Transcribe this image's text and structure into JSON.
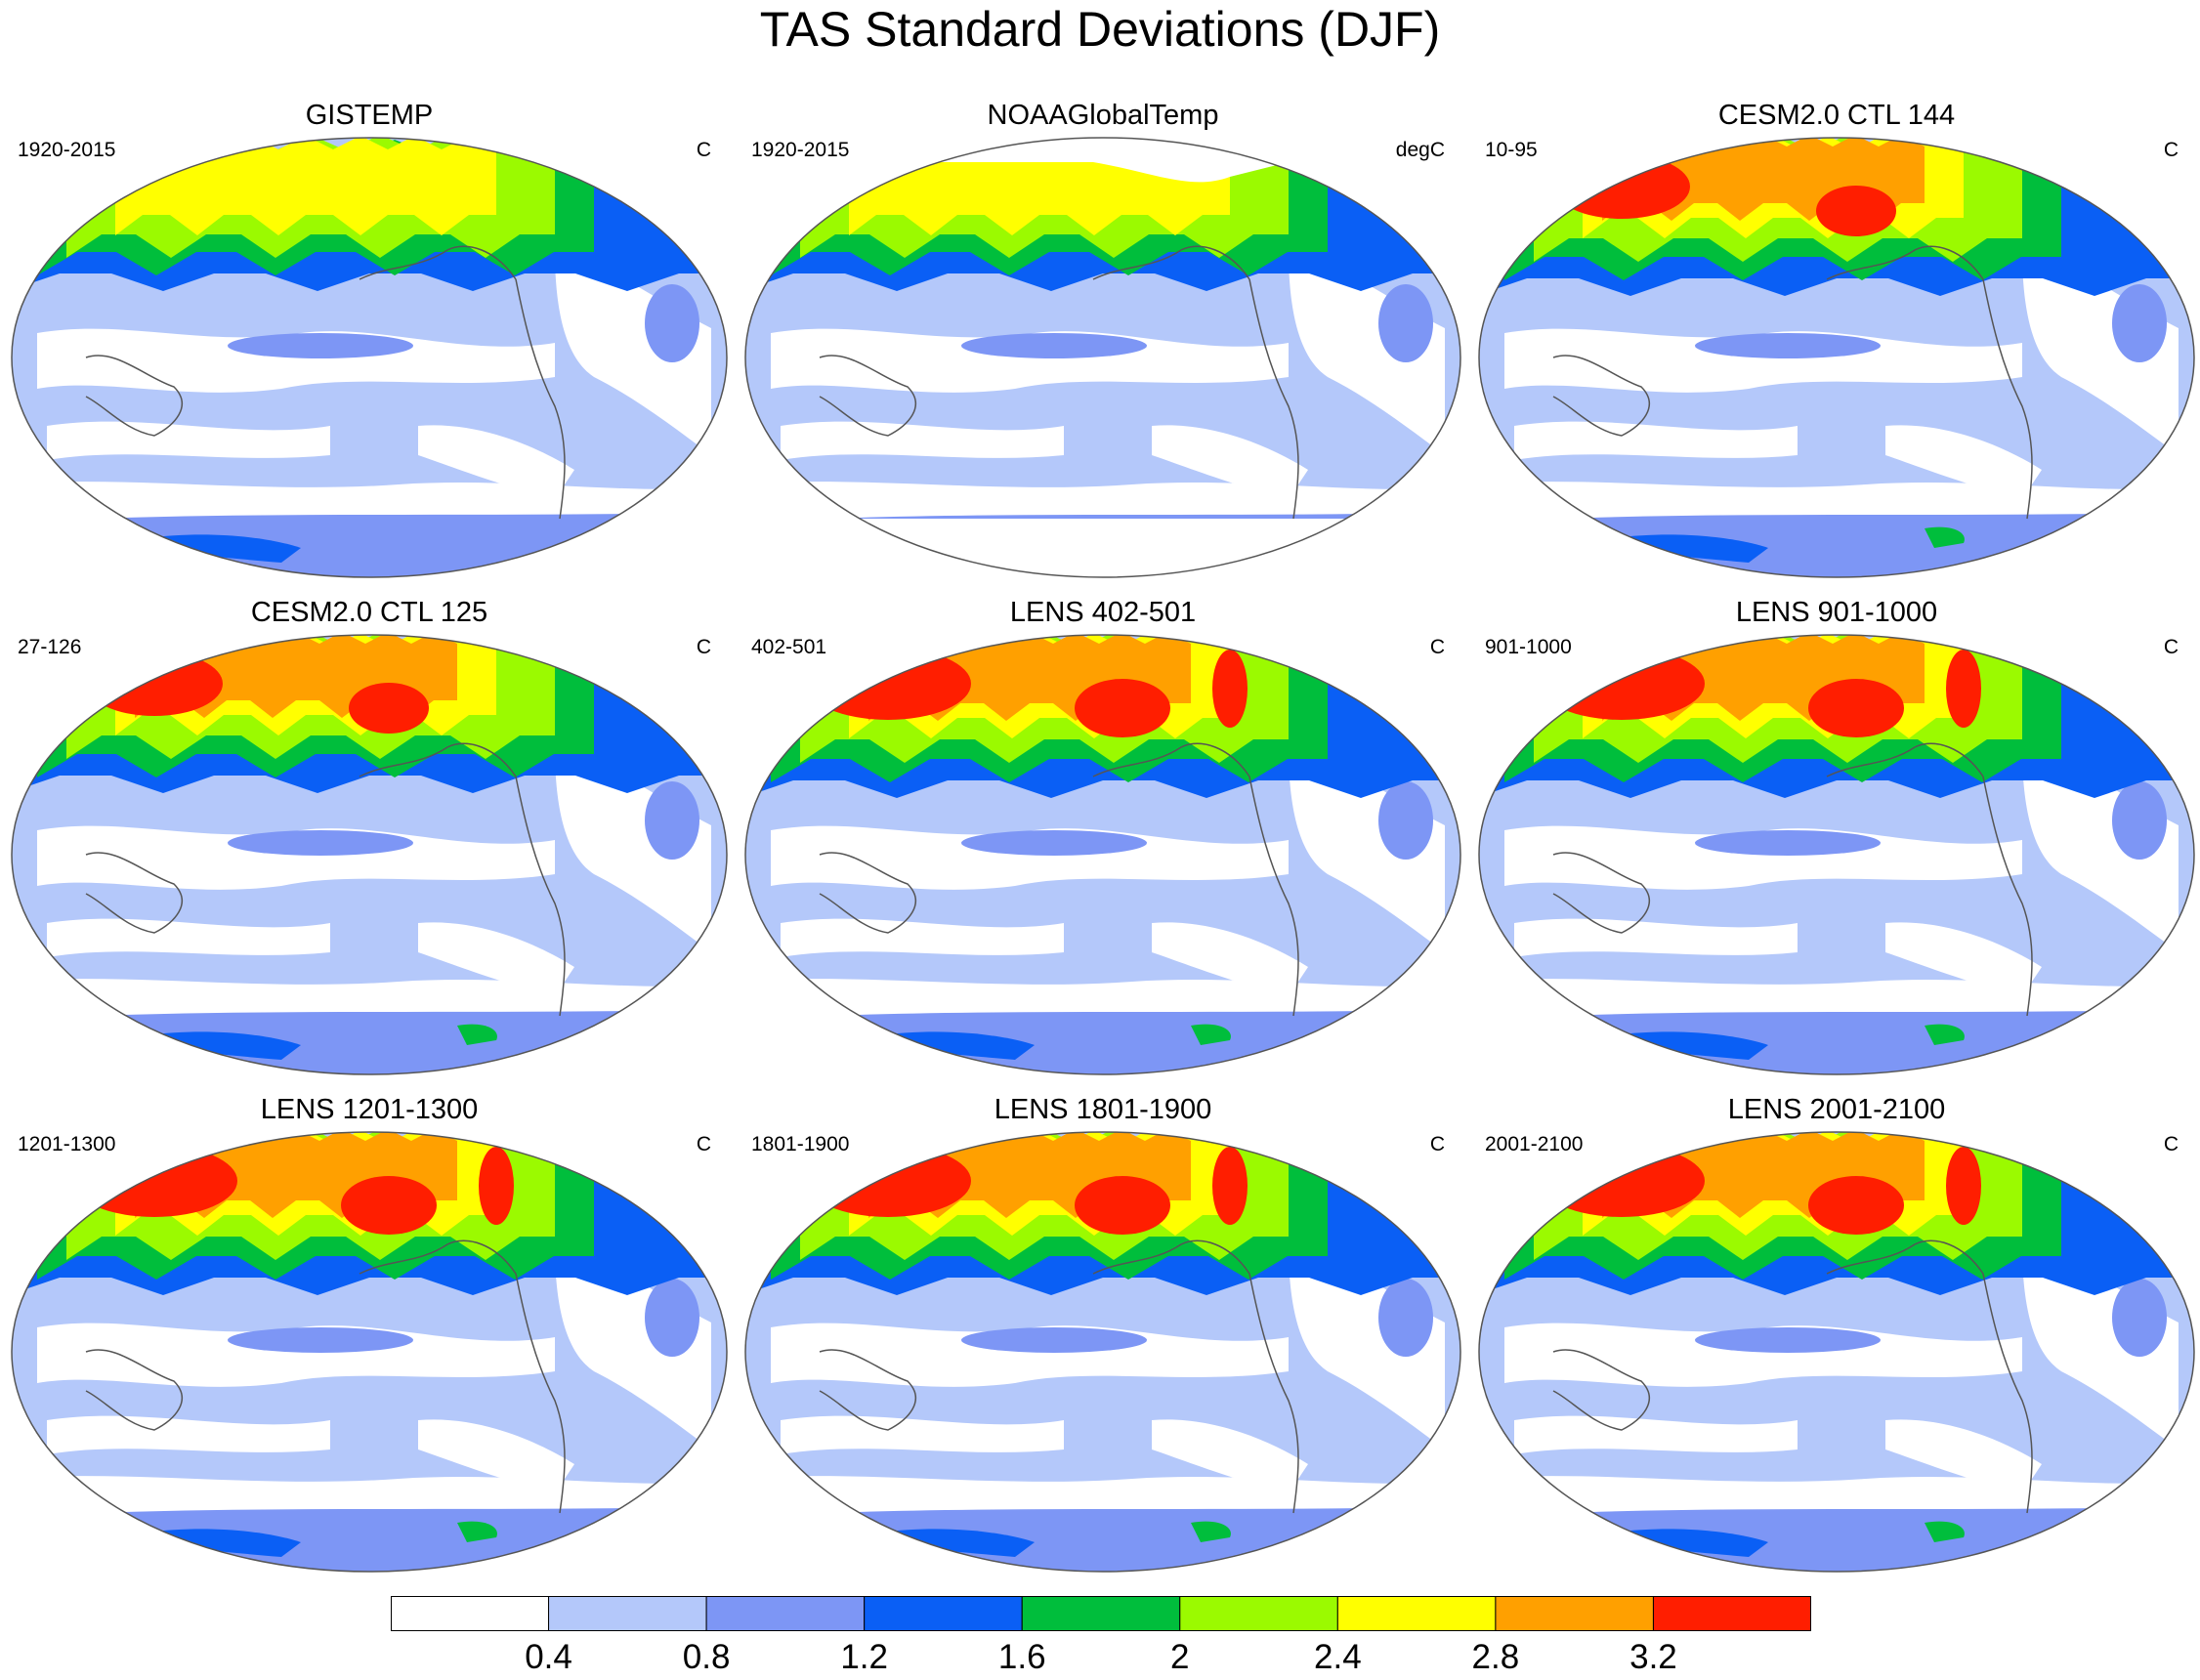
{
  "title": "TAS Standard Deviations (DJF)",
  "panels": [
    {
      "title": "GISTEMP",
      "left": "1920-2015",
      "right": "C",
      "intensity": 1,
      "missing": false
    },
    {
      "title": "NOAAGlobalTemp",
      "left": "1920-2015",
      "right": "degC",
      "intensity": 1,
      "missing": true
    },
    {
      "title": "CESM2.0 CTL 144",
      "left": "10-95",
      "right": "C",
      "intensity": 2,
      "missing": false
    },
    {
      "title": "CESM2.0 CTL 125",
      "left": "27-126",
      "right": "C",
      "intensity": 2,
      "missing": false
    },
    {
      "title": "LENS 402-501",
      "left": "402-501",
      "right": "C",
      "intensity": 3,
      "missing": false
    },
    {
      "title": "LENS 901-1000",
      "left": "901-1000",
      "right": "C",
      "intensity": 3,
      "missing": false
    },
    {
      "title": "LENS 1201-1300",
      "left": "1201-1300",
      "right": "C",
      "intensity": 3,
      "missing": false
    },
    {
      "title": "LENS 1801-1900",
      "left": "1801-1900",
      "right": "C",
      "intensity": 3,
      "missing": false
    },
    {
      "title": "LENS 2001-2100",
      "left": "2001-2100",
      "right": "C",
      "intensity": 3,
      "missing": false
    }
  ],
  "colorbar": {
    "colors": [
      "#ffffff",
      "#b4c8fa",
      "#7d96f5",
      "#0a5ff5",
      "#00be3c",
      "#9bfa00",
      "#ffff00",
      "#ffa000",
      "#ff1e00"
    ],
    "labels": [
      "0.4",
      "0.8",
      "1.2",
      "1.6",
      "2",
      "2.4",
      "2.8",
      "3.2"
    ]
  }
}
